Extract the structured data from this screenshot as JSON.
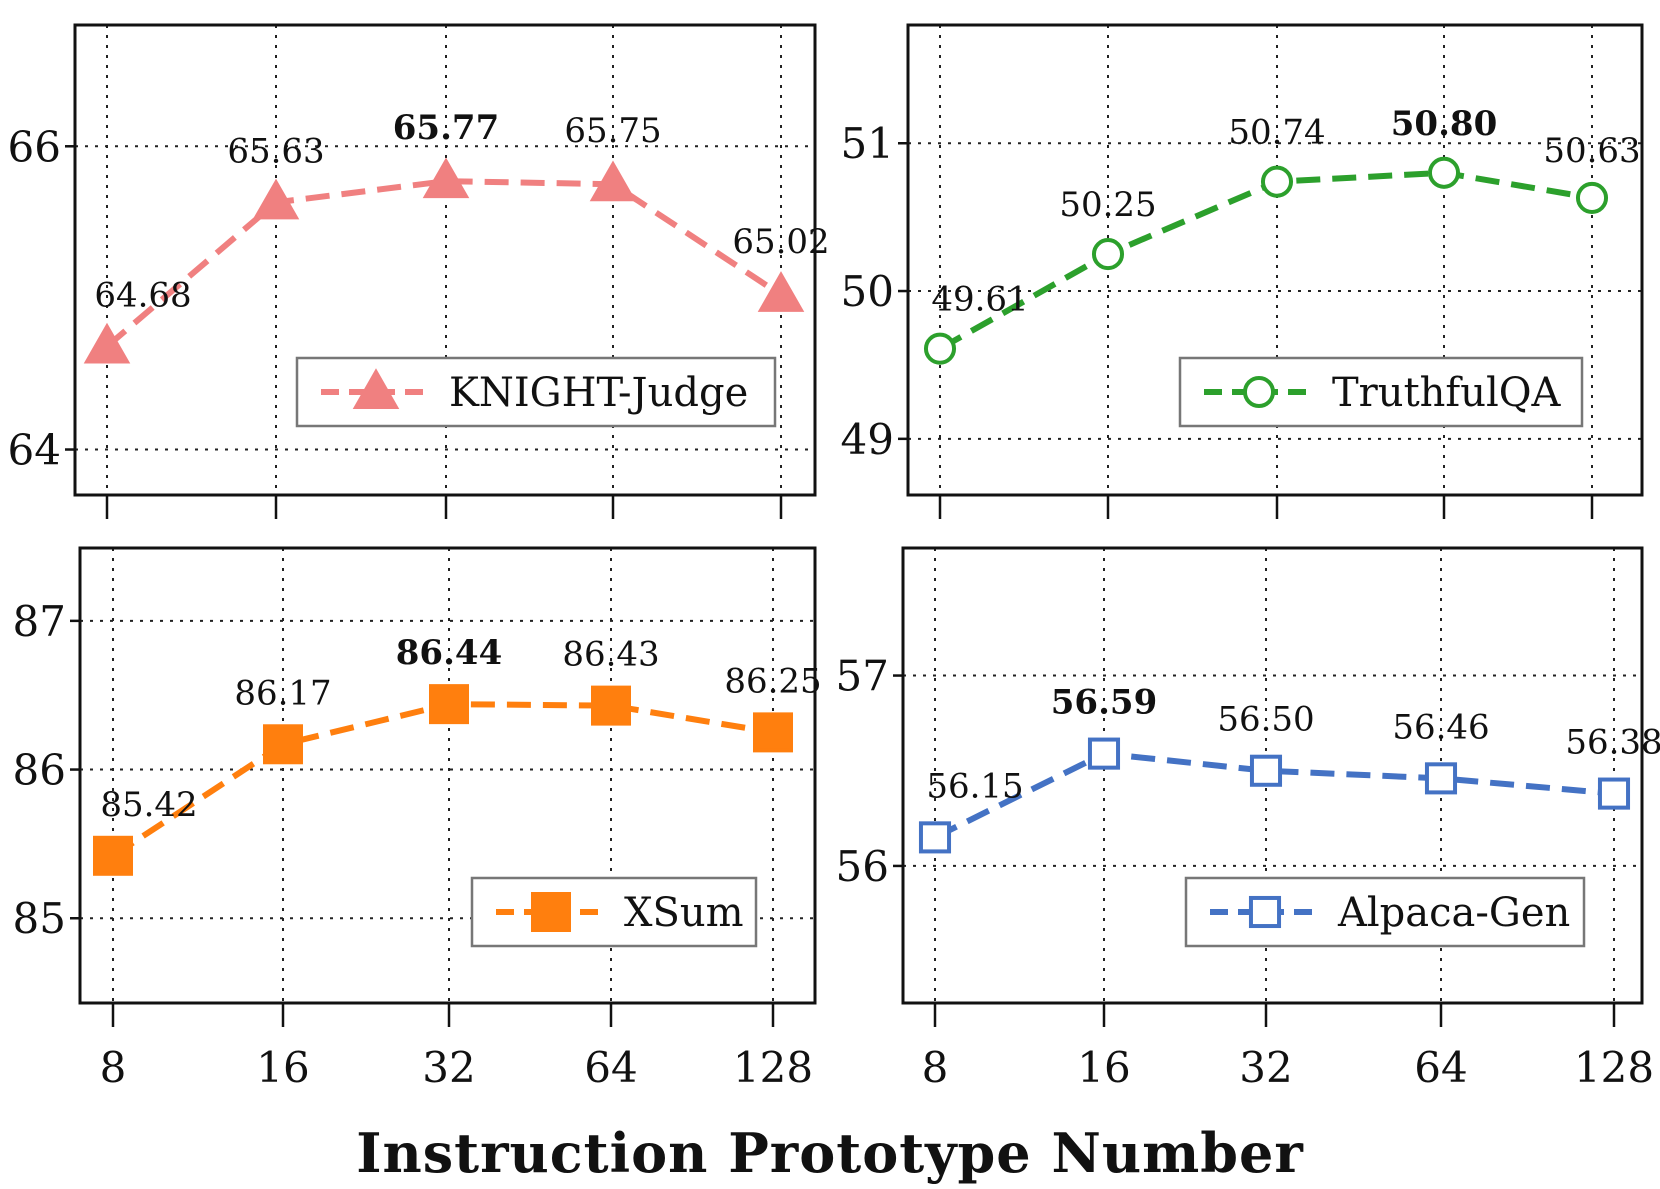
{
  "chart_data": {
    "type": "line",
    "xlabel": "Instruction Prototype Number",
    "categories": [
      "8",
      "16",
      "32",
      "64",
      "128"
    ],
    "panels": [
      {
        "id": "knight",
        "series_name": "KNIGHT-Judge",
        "color": "#f08080",
        "marker": "triangle",
        "marker_fill": "filled",
        "values": [
          64.68,
          65.63,
          65.77,
          65.75,
          65.02
        ],
        "labels": [
          "64.68",
          "65.63",
          "65.77",
          "65.75",
          "65.02"
        ],
        "best_index": 2,
        "ylim": [
          63.7,
          66.8
        ],
        "yticks": [
          64,
          66
        ],
        "ytick_labels": [
          "64",
          "66"
        ],
        "legend": "bottom-right"
      },
      {
        "id": "truthfulqa",
        "series_name": "TruthfulQA",
        "color": "#2ca02c",
        "marker": "circle",
        "marker_fill": "open",
        "values": [
          49.61,
          50.25,
          50.74,
          50.8,
          50.63
        ],
        "labels": [
          "49.61",
          "50.25",
          "50.74",
          "50.80",
          "50.63"
        ],
        "best_index": 3,
        "ylim": [
          48.62,
          51.8
        ],
        "yticks": [
          49,
          50,
          51
        ],
        "ytick_labels": [
          "49",
          "50",
          "51"
        ],
        "legend": "bottom-right"
      },
      {
        "id": "xsum",
        "series_name": "XSum",
        "color": "#ff7f0e",
        "marker": "square",
        "marker_fill": "filled",
        "values": [
          85.42,
          86.17,
          86.44,
          86.43,
          86.25
        ],
        "labels": [
          "85.42",
          "86.17",
          "86.44",
          "86.43",
          "86.25"
        ],
        "best_index": 2,
        "ylim": [
          84.43,
          87.49
        ],
        "yticks": [
          85,
          86,
          87
        ],
        "ytick_labels": [
          "85",
          "86",
          "87"
        ],
        "legend": "bottom-right"
      },
      {
        "id": "alpaca",
        "series_name": "Alpaca-Gen",
        "color": "#4472c4",
        "marker": "square",
        "marker_fill": "open",
        "values": [
          56.15,
          56.59,
          56.5,
          56.46,
          56.38
        ],
        "labels": [
          "56.15",
          "56.59",
          "56.50",
          "56.46",
          "56.38"
        ],
        "best_index": 1,
        "ylim": [
          55.28,
          57.67
        ],
        "yticks": [
          56,
          57
        ],
        "ytick_labels": [
          "56",
          "57"
        ],
        "legend": "bottom-right"
      }
    ]
  }
}
